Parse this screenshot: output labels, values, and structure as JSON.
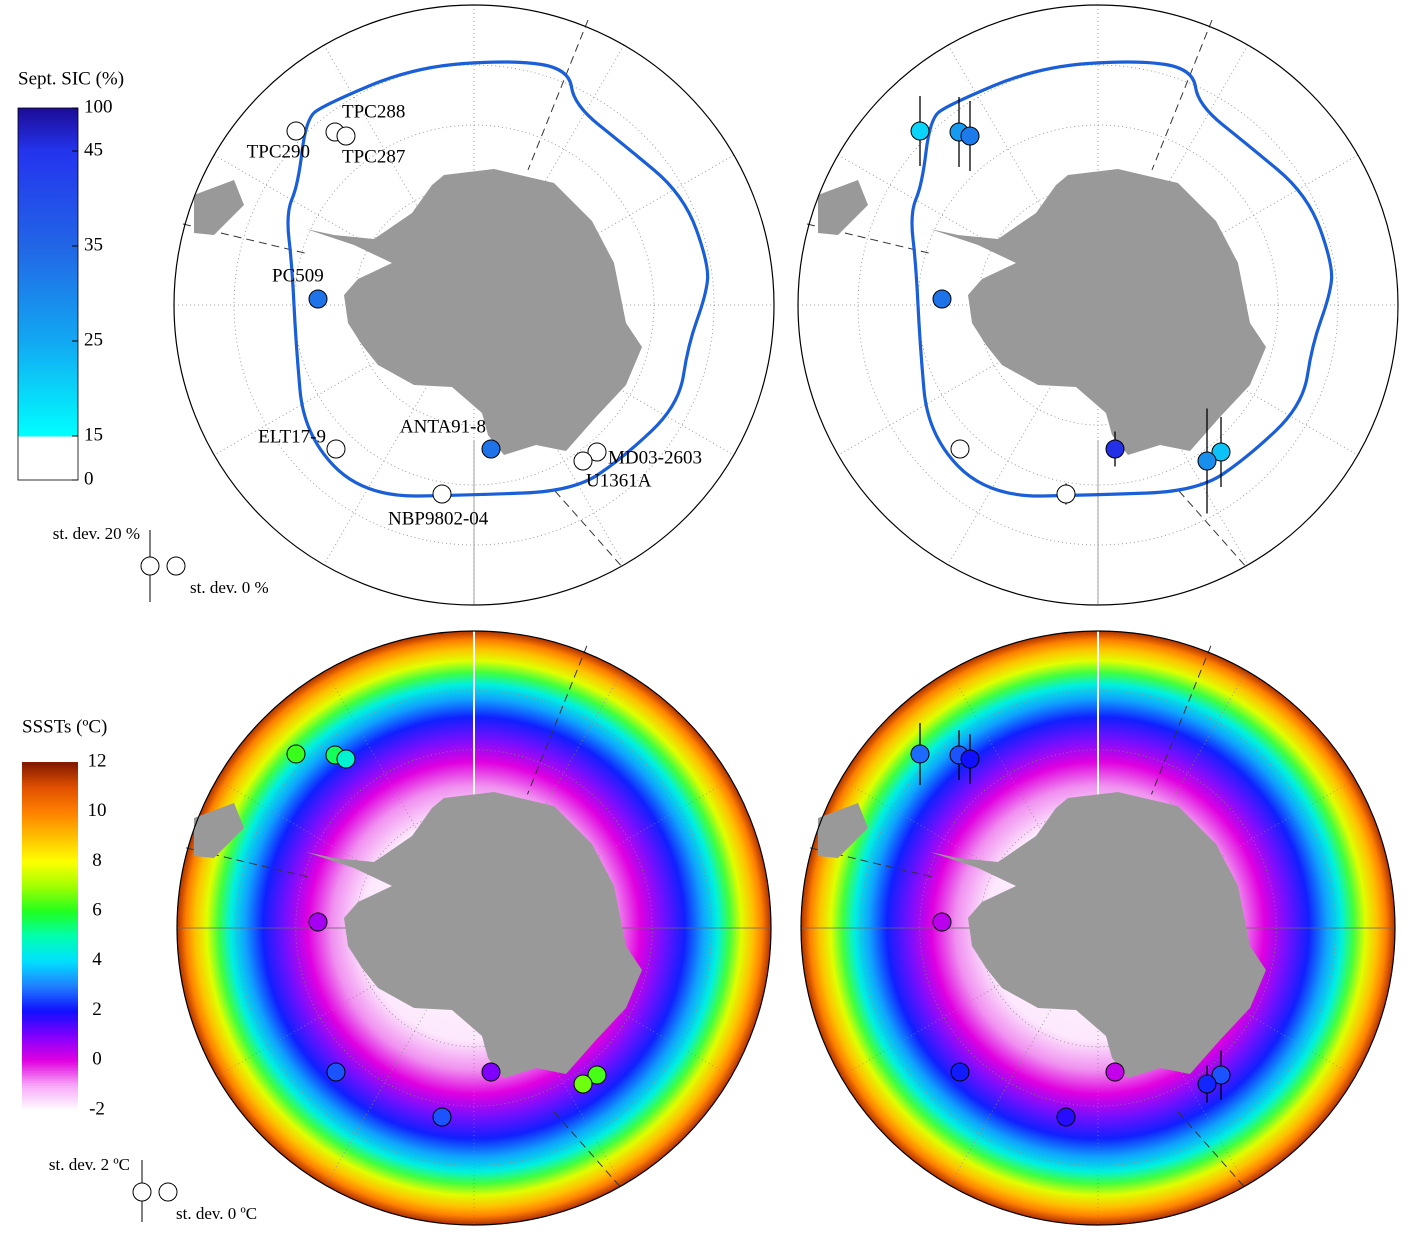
{
  "sites": [
    "TPC290",
    "TPC288",
    "TPC287",
    "PC509",
    "ELT17-9",
    "ANTA91-8",
    "MD03-2603",
    "U1361A",
    "NBP9802-04"
  ],
  "sic_colorbar": {
    "title": "Sept. SIC (%)",
    "ticks": [
      0,
      15,
      25,
      35,
      45,
      100
    ]
  },
  "sic_legend": {
    "stdev_bar": "st. dev. 20 %",
    "stdev_none": "st. dev. 0 %"
  },
  "sic_panels": [
    {
      "values": [
        0,
        0,
        0,
        33,
        0,
        33,
        0,
        0,
        0
      ]
    },
    {
      "values": [
        20,
        27,
        32,
        33,
        0,
        50,
        22,
        29,
        0
      ],
      "stdev": [
        20,
        20,
        20,
        4,
        3,
        10,
        20,
        30,
        6
      ]
    }
  ],
  "sst_colorbar": {
    "title": "SSSTs (ºC)",
    "ticks": [
      -2,
      0,
      2,
      4,
      6,
      8,
      10,
      12
    ]
  },
  "sst_legend": {
    "stdev_bar": "st. dev. 2 ºC",
    "stdev_none": "st. dev. 0 ºC"
  },
  "sst_panels": [
    {
      "values": [
        6.2,
        5.6,
        4.6,
        0.6,
        2.6,
        1.0,
        6.3,
        6.6,
        2.6
      ]
    },
    {
      "values": [
        2.8,
        2.6,
        2.0,
        0.4,
        2.1,
        0.3,
        2.6,
        2.2,
        1.8
      ],
      "stdev": [
        2,
        1.6,
        1.6,
        0.4,
        0.6,
        0.6,
        1.6,
        1.2,
        0.6
      ]
    }
  ]
}
